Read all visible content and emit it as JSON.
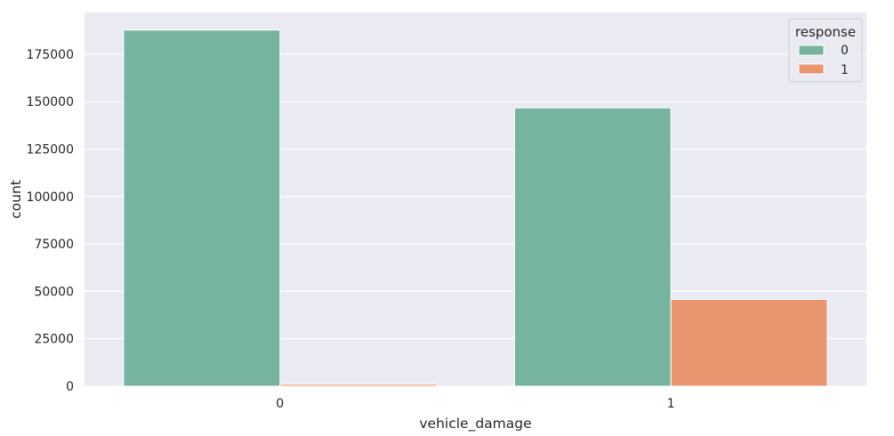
{
  "chart_data": {
    "type": "bar",
    "title": "",
    "xlabel": "vehicle_damage",
    "ylabel": "count",
    "categories": [
      "0",
      "1"
    ],
    "series": [
      {
        "name": "0",
        "values": [
          187714,
          146685
        ]
      },
      {
        "name": "1",
        "values": [
          982,
          45728
        ]
      }
    ],
    "ylim": [
      0,
      197000
    ],
    "yticks": [
      0,
      25000,
      50000,
      75000,
      100000,
      125000,
      150000,
      175000
    ],
    "grid": true,
    "legend": {
      "title": "response",
      "placement": "top-right",
      "entries": [
        "0",
        "1"
      ]
    },
    "colors": {
      "series": [
        "#76b4a0",
        "#e9956f"
      ],
      "plot_background": "#eaeaf2",
      "grid": "#ffffff",
      "text": "#262626"
    }
  }
}
